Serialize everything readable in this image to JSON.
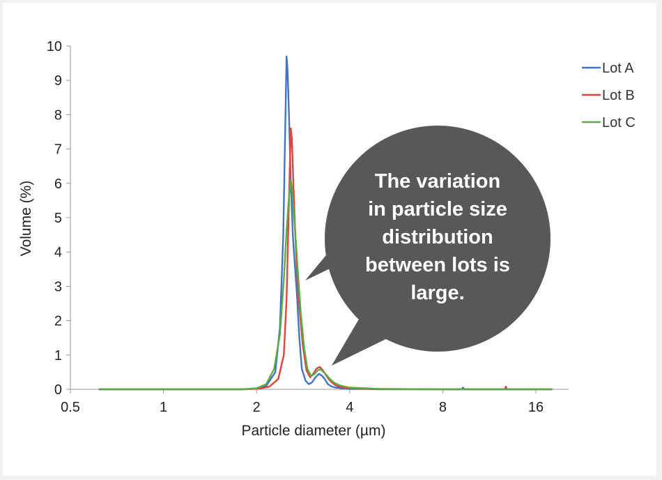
{
  "chart_data": {
    "type": "line",
    "x_scale": "log2",
    "xlabel": "Particle diameter (µm)",
    "ylabel": "Volume (%)",
    "xlim": [
      0.5,
      20
    ],
    "ylim": [
      0,
      10
    ],
    "x_ticks": [
      {
        "value": 0.5,
        "label": "0.5"
      },
      {
        "value": 1,
        "label": "1"
      },
      {
        "value": 2,
        "label": "2"
      },
      {
        "value": 4,
        "label": "4"
      },
      {
        "value": 8,
        "label": "8"
      },
      {
        "value": 16,
        "label": "16"
      }
    ],
    "y_ticks": [
      {
        "value": 0,
        "label": "0"
      },
      {
        "value": 1,
        "label": "1"
      },
      {
        "value": 2,
        "label": "2"
      },
      {
        "value": 3,
        "label": "3"
      },
      {
        "value": 4,
        "label": "4"
      },
      {
        "value": 5,
        "label": "5"
      },
      {
        "value": 6,
        "label": "6"
      },
      {
        "value": 7,
        "label": "7"
      },
      {
        "value": 8,
        "label": "8"
      },
      {
        "value": 9,
        "label": "9"
      },
      {
        "value": 10,
        "label": "10"
      }
    ],
    "legend_position": "top-right",
    "series": [
      {
        "name": "Lot A",
        "color": "#4472c4",
        "x": [
          0.62,
          1.0,
          1.8,
          2.0,
          2.15,
          2.3,
          2.38,
          2.44,
          2.48,
          2.5,
          2.52,
          2.55,
          2.58,
          2.62,
          2.66,
          2.7,
          2.75,
          2.8,
          2.88,
          2.95,
          3.02,
          3.1,
          3.18,
          3.25,
          3.32,
          3.4,
          3.5,
          3.6,
          3.7,
          3.8,
          4.0,
          4.5,
          5.0,
          6.0,
          8.0,
          9.2,
          9.3,
          9.4,
          12.0,
          18.0
        ],
        "y": [
          0,
          0,
          0,
          0.02,
          0.1,
          0.5,
          1.8,
          4.5,
          8.0,
          9.7,
          9.3,
          7.8,
          6.0,
          4.5,
          3.6,
          2.8,
          1.5,
          0.6,
          0.25,
          0.15,
          0.2,
          0.35,
          0.45,
          0.4,
          0.3,
          0.15,
          0.08,
          0.05,
          0.04,
          0.02,
          0.01,
          0.01,
          0,
          0,
          0,
          0,
          0.05,
          0,
          0,
          0
        ]
      },
      {
        "name": "Lot B",
        "color": "#e0443a",
        "x": [
          0.62,
          1.0,
          1.8,
          2.05,
          2.2,
          2.35,
          2.45,
          2.5,
          2.54,
          2.58,
          2.6,
          2.63,
          2.66,
          2.7,
          2.75,
          2.82,
          2.9,
          2.98,
          3.05,
          3.12,
          3.2,
          3.28,
          3.35,
          3.42,
          3.5,
          3.6,
          3.75,
          3.9,
          4.2,
          5.0,
          8.0,
          12.7,
          12.8,
          12.9,
          18.0
        ],
        "y": [
          0,
          0,
          0,
          0.02,
          0.08,
          0.3,
          1.0,
          2.6,
          5.2,
          7.6,
          7.3,
          6.0,
          4.8,
          3.5,
          2.4,
          1.3,
          0.55,
          0.35,
          0.45,
          0.6,
          0.65,
          0.55,
          0.42,
          0.3,
          0.2,
          0.12,
          0.06,
          0.03,
          0.02,
          0.01,
          0,
          0,
          0.08,
          0,
          0
        ]
      },
      {
        "name": "Lot C",
        "color": "#5aaa46",
        "x": [
          0.62,
          1.0,
          1.8,
          2.0,
          2.15,
          2.28,
          2.38,
          2.45,
          2.5,
          2.55,
          2.58,
          2.6,
          2.64,
          2.68,
          2.72,
          2.78,
          2.85,
          2.92,
          3.0,
          3.08,
          3.15,
          3.22,
          3.3,
          3.38,
          3.45,
          3.55,
          3.7,
          3.85,
          4.0,
          4.5,
          5.0,
          8.0,
          18.0
        ],
        "y": [
          0,
          0,
          0,
          0.03,
          0.15,
          0.6,
          1.6,
          3.2,
          4.6,
          5.7,
          6.1,
          5.9,
          5.1,
          4.3,
          3.4,
          2.2,
          1.2,
          0.6,
          0.38,
          0.45,
          0.55,
          0.58,
          0.5,
          0.4,
          0.3,
          0.2,
          0.12,
          0.08,
          0.05,
          0.03,
          0.01,
          0,
          0
        ]
      }
    ],
    "annotation": {
      "lines": [
        "The variation",
        "in particle size",
        "distribution",
        "between lots is",
        "large."
      ]
    }
  }
}
